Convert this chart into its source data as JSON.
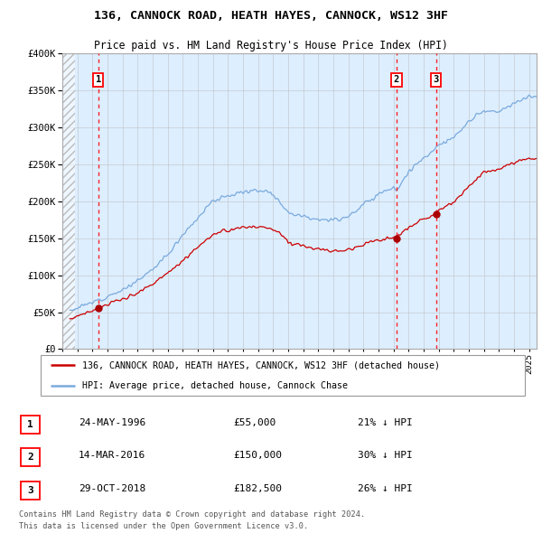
{
  "title": "136, CANNOCK ROAD, HEATH HAYES, CANNOCK, WS12 3HF",
  "subtitle": "Price paid vs. HM Land Registry's House Price Index (HPI)",
  "ylim": [
    0,
    400000
  ],
  "yticks": [
    0,
    50000,
    100000,
    150000,
    200000,
    250000,
    300000,
    350000,
    400000
  ],
  "ytick_labels": [
    "£0",
    "£50K",
    "£100K",
    "£150K",
    "£200K",
    "£250K",
    "£300K",
    "£350K",
    "£400K"
  ],
  "xlim_start": 1994.0,
  "xlim_end": 2025.5,
  "hpi_color": "#7aaadd",
  "price_color": "#cc0000",
  "bg_color": "#ddeeff",
  "hatch_color": "#bbbbbb",
  "grid_color": "#bbbbbb",
  "transactions": [
    {
      "num": 1,
      "date": "24-MAY-1996",
      "year": 1996.38,
      "price": 55000,
      "label": "21% ↓ HPI"
    },
    {
      "num": 2,
      "date": "14-MAR-2016",
      "year": 2016.19,
      "price": 150000,
      "label": "30% ↓ HPI"
    },
    {
      "num": 3,
      "date": "29-OCT-2018",
      "year": 2018.82,
      "price": 182500,
      "label": "26% ↓ HPI"
    }
  ],
  "legend_line1": "136, CANNOCK ROAD, HEATH HAYES, CANNOCK, WS12 3HF (detached house)",
  "legend_line2": "HPI: Average price, detached house, Cannock Chase",
  "footnote1": "Contains HM Land Registry data © Crown copyright and database right 2024.",
  "footnote2": "This data is licensed under the Open Government Licence v3.0.",
  "table_rows": [
    {
      "num": 1,
      "date": "24-MAY-1996",
      "price": "£55,000",
      "label": "21% ↓ HPI"
    },
    {
      "num": 2,
      "date": "14-MAR-2016",
      "price": "£150,000",
      "label": "30% ↓ HPI"
    },
    {
      "num": 3,
      "date": "29-OCT-2018",
      "price": "£182,500",
      "label": "26% ↓ HPI"
    }
  ]
}
